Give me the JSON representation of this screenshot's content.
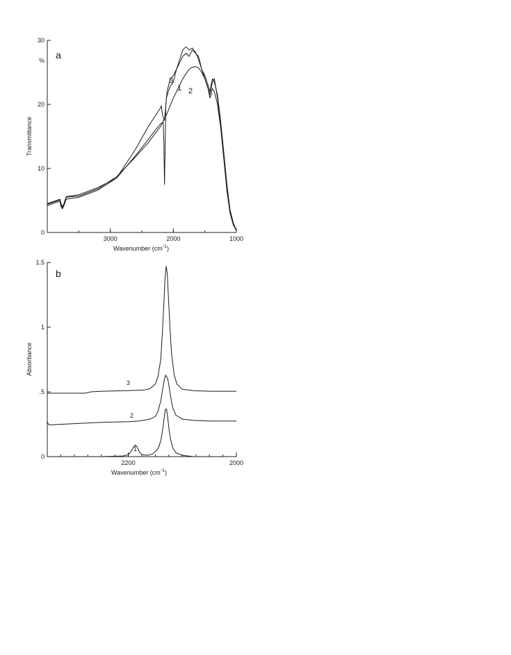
{
  "chart_data": [
    {
      "type": "line",
      "panel_label": "a",
      "xlabel": "Wavenumber (cm",
      "xlabel_sup": "-1",
      "xlabel_tail": ")",
      "ylabel": "Transmittance",
      "y_unit": "%",
      "xlim": [
        4000,
        1000
      ],
      "ylim": [
        0,
        30
      ],
      "x_ticks": [
        {
          "value": 3000,
          "label": "3000"
        },
        {
          "value": 2000,
          "label": "2000"
        },
        {
          "value": 1000,
          "label": "1000"
        }
      ],
      "y_ticks": [
        {
          "value": 0,
          "label": "0"
        },
        {
          "value": 10,
          "label": "10"
        },
        {
          "value": 20,
          "label": "20"
        },
        {
          "value": 30,
          "label": "30"
        }
      ],
      "series": [
        {
          "label": "1",
          "x": [
            4000,
            3800,
            3780,
            3760,
            3740,
            3700,
            3500,
            3200,
            2900,
            2600,
            2400,
            2300,
            2200,
            2160,
            2150,
            2140,
            2130,
            2120,
            2110,
            2080,
            2050,
            2000,
            1950,
            1900,
            1850,
            1800,
            1750,
            1700,
            1650,
            1600,
            1550,
            1500,
            1450,
            1420,
            1400,
            1380,
            1350,
            1300,
            1250,
            1200,
            1150,
            1100,
            1050,
            1000
          ],
          "y": [
            4.2,
            4.9,
            4.0,
            3.7,
            4.1,
            5.2,
            5.5,
            6.6,
            8.5,
            12.0,
            14.5,
            15.8,
            17.0,
            17.2,
            14.0,
            7.5,
            13.0,
            20.0,
            21.0,
            22.0,
            22.8,
            23.5,
            25.5,
            26.5,
            27.5,
            28.0,
            27.5,
            28.5,
            28.0,
            27.5,
            25.5,
            24.0,
            22.5,
            21.5,
            22.5,
            23.5,
            24.0,
            21.0,
            17.0,
            12.0,
            7.0,
            3.5,
            1.5,
            0.3
          ]
        },
        {
          "label": "2",
          "x": [
            4000,
            3800,
            3780,
            3760,
            3740,
            3700,
            3500,
            3200,
            2900,
            2600,
            2400,
            2300,
            2200,
            2150,
            2100,
            2050,
            2000,
            1950,
            1900,
            1850,
            1800,
            1750,
            1700,
            1650,
            1600,
            1550,
            1500,
            1450,
            1420,
            1400,
            1380,
            1350,
            1300,
            1250,
            1200,
            1150,
            1100,
            1050,
            1000
          ],
          "y": [
            4.4,
            5.1,
            4.3,
            3.9,
            4.3,
            5.5,
            5.7,
            6.8,
            8.7,
            11.8,
            14.0,
            15.3,
            16.6,
            17.6,
            18.6,
            19.8,
            21.0,
            22.0,
            23.0,
            24.0,
            24.8,
            25.5,
            25.8,
            25.9,
            25.7,
            25.0,
            24.0,
            22.5,
            21.0,
            21.5,
            22.5,
            22.0,
            20.0,
            16.5,
            11.5,
            6.5,
            3.0,
            1.2,
            0.3
          ]
        },
        {
          "label": "3",
          "x": [
            4000,
            3800,
            3780,
            3760,
            3740,
            3700,
            3500,
            3200,
            2900,
            2600,
            2400,
            2300,
            2200,
            2190,
            2180,
            2175,
            2160,
            2140,
            2100,
            2050,
            2000,
            1950,
            1900,
            1850,
            1800,
            1750,
            1700,
            1650,
            1600,
            1550,
            1500,
            1450,
            1420,
            1400,
            1380,
            1350,
            1300,
            1250,
            1200,
            1150,
            1100,
            1050,
            1000
          ],
          "y": [
            4.5,
            5.2,
            4.5,
            4.0,
            4.4,
            5.6,
            5.9,
            7.0,
            8.5,
            13.0,
            16.5,
            18.0,
            19.5,
            19.8,
            19.0,
            18.5,
            18.0,
            17.5,
            22.0,
            24.0,
            24.5,
            25.5,
            27.0,
            28.5,
            29.0,
            28.5,
            28.8,
            28.2,
            27.0,
            25.5,
            24.5,
            23.0,
            22.0,
            23.0,
            24.0,
            23.5,
            21.5,
            17.5,
            12.5,
            7.5,
            3.5,
            1.5,
            0.3
          ]
        }
      ]
    },
    {
      "type": "line",
      "panel_label": "b",
      "xlabel": "Wavenumber (cm",
      "xlabel_sup": "-1",
      "xlabel_tail": ")",
      "ylabel": "Absorbance",
      "xlim": [
        2350,
        2000
      ],
      "ylim": [
        0,
        1.5
      ],
      "x_ticks": [
        {
          "value": 2200,
          "label": "2200"
        },
        {
          "value": 2000,
          "label": "2000"
        }
      ],
      "y_ticks": [
        {
          "value": 0,
          "label": "0"
        },
        {
          "value": 0.5,
          "label": ".5"
        },
        {
          "value": 1,
          "label": "1"
        },
        {
          "value": 1.5,
          "label": "1.5"
        }
      ],
      "series": [
        {
          "label": "1",
          "x": [
            2350,
            2300,
            2250,
            2210,
            2200,
            2195,
            2190,
            2187,
            2184,
            2180,
            2175,
            2165,
            2155,
            2145,
            2140,
            2136,
            2133,
            2131,
            2129,
            2127,
            2125,
            2122,
            2118,
            2112,
            2100,
            2080,
            2050,
            2000
          ],
          "y": [
            0.0,
            0.0,
            0.0,
            0.005,
            0.015,
            0.04,
            0.075,
            0.09,
            0.075,
            0.04,
            0.015,
            0.01,
            0.02,
            0.06,
            0.12,
            0.22,
            0.32,
            0.37,
            0.36,
            0.3,
            0.22,
            0.14,
            0.07,
            0.03,
            0.01,
            0.0,
            0.0,
            0.0
          ]
        },
        {
          "label": "2",
          "x": [
            2350,
            2348,
            2345,
            2300,
            2250,
            2200,
            2180,
            2160,
            2150,
            2145,
            2140,
            2136,
            2133,
            2131,
            2130,
            2128,
            2127,
            2125,
            2122,
            2118,
            2112,
            2100,
            2080,
            2050,
            2000
          ],
          "y": [
            0.27,
            0.25,
            0.245,
            0.255,
            0.265,
            0.27,
            0.275,
            0.29,
            0.31,
            0.35,
            0.43,
            0.53,
            0.6,
            0.63,
            0.62,
            0.61,
            0.6,
            0.55,
            0.47,
            0.38,
            0.32,
            0.29,
            0.28,
            0.275,
            0.275
          ]
        },
        {
          "label": "3",
          "x": [
            2350,
            2300,
            2280,
            2270,
            2250,
            2200,
            2170,
            2160,
            2150,
            2145,
            2140,
            2137,
            2134,
            2132,
            2130,
            2128,
            2126,
            2123,
            2120,
            2115,
            2110,
            2100,
            2080,
            2050,
            2000
          ],
          "y": [
            0.49,
            0.49,
            0.49,
            0.5,
            0.505,
            0.51,
            0.515,
            0.525,
            0.56,
            0.62,
            0.75,
            0.95,
            1.2,
            1.38,
            1.47,
            1.42,
            1.25,
            1.0,
            0.8,
            0.63,
            0.56,
            0.52,
            0.51,
            0.505,
            0.505
          ]
        }
      ]
    }
  ]
}
